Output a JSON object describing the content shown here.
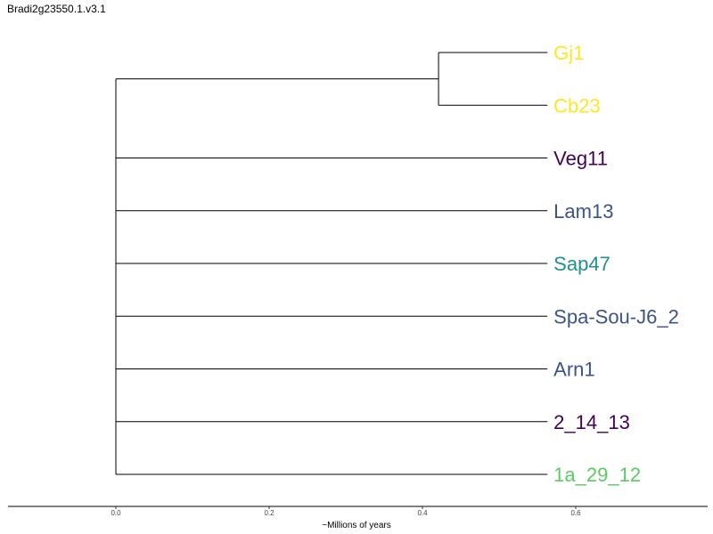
{
  "title": "Bradi2g23550.1.v3.1",
  "chart_data": {
    "type": "tree",
    "xlabel": "~Millions of years",
    "xticks": [
      0.0,
      0.2,
      0.4,
      0.6
    ],
    "xtick_labels": [
      "0.0",
      "0.2",
      "0.4",
      "0.6"
    ],
    "xlim": [
      -0.14,
      0.775
    ],
    "tips": [
      {
        "label": "Gj1",
        "color": "#fde725",
        "x": 0.563
      },
      {
        "label": "Cb23",
        "color": "#fde725",
        "x": 0.563
      },
      {
        "label": "Veg11",
        "color": "#440154",
        "x": 0.563
      },
      {
        "label": "Lam13",
        "color": "#3b528b",
        "x": 0.563
      },
      {
        "label": "Sap47",
        "color": "#21918c",
        "x": 0.563
      },
      {
        "label": "Spa-Sou-J6_2",
        "color": "#3b528b",
        "x": 0.563
      },
      {
        "label": "Arn1",
        "color": "#3b528b",
        "x": 0.563
      },
      {
        "label": "2_14_13",
        "color": "#440154",
        "x": 0.563
      },
      {
        "label": "1a_29_12",
        "color": "#5ec962",
        "x": 0.563
      }
    ],
    "internal_nodes": [
      {
        "id": "root",
        "x": 0.0,
        "children": [
          "clade_gj1_cb23",
          "Veg11",
          "Lam13",
          "Sap47",
          "Spa-Sou-J6_2",
          "Arn1",
          "2_14_13",
          "1a_29_12"
        ]
      },
      {
        "id": "clade_gj1_cb23",
        "x": 0.421,
        "children": [
          "Gj1",
          "Cb23"
        ]
      }
    ]
  }
}
